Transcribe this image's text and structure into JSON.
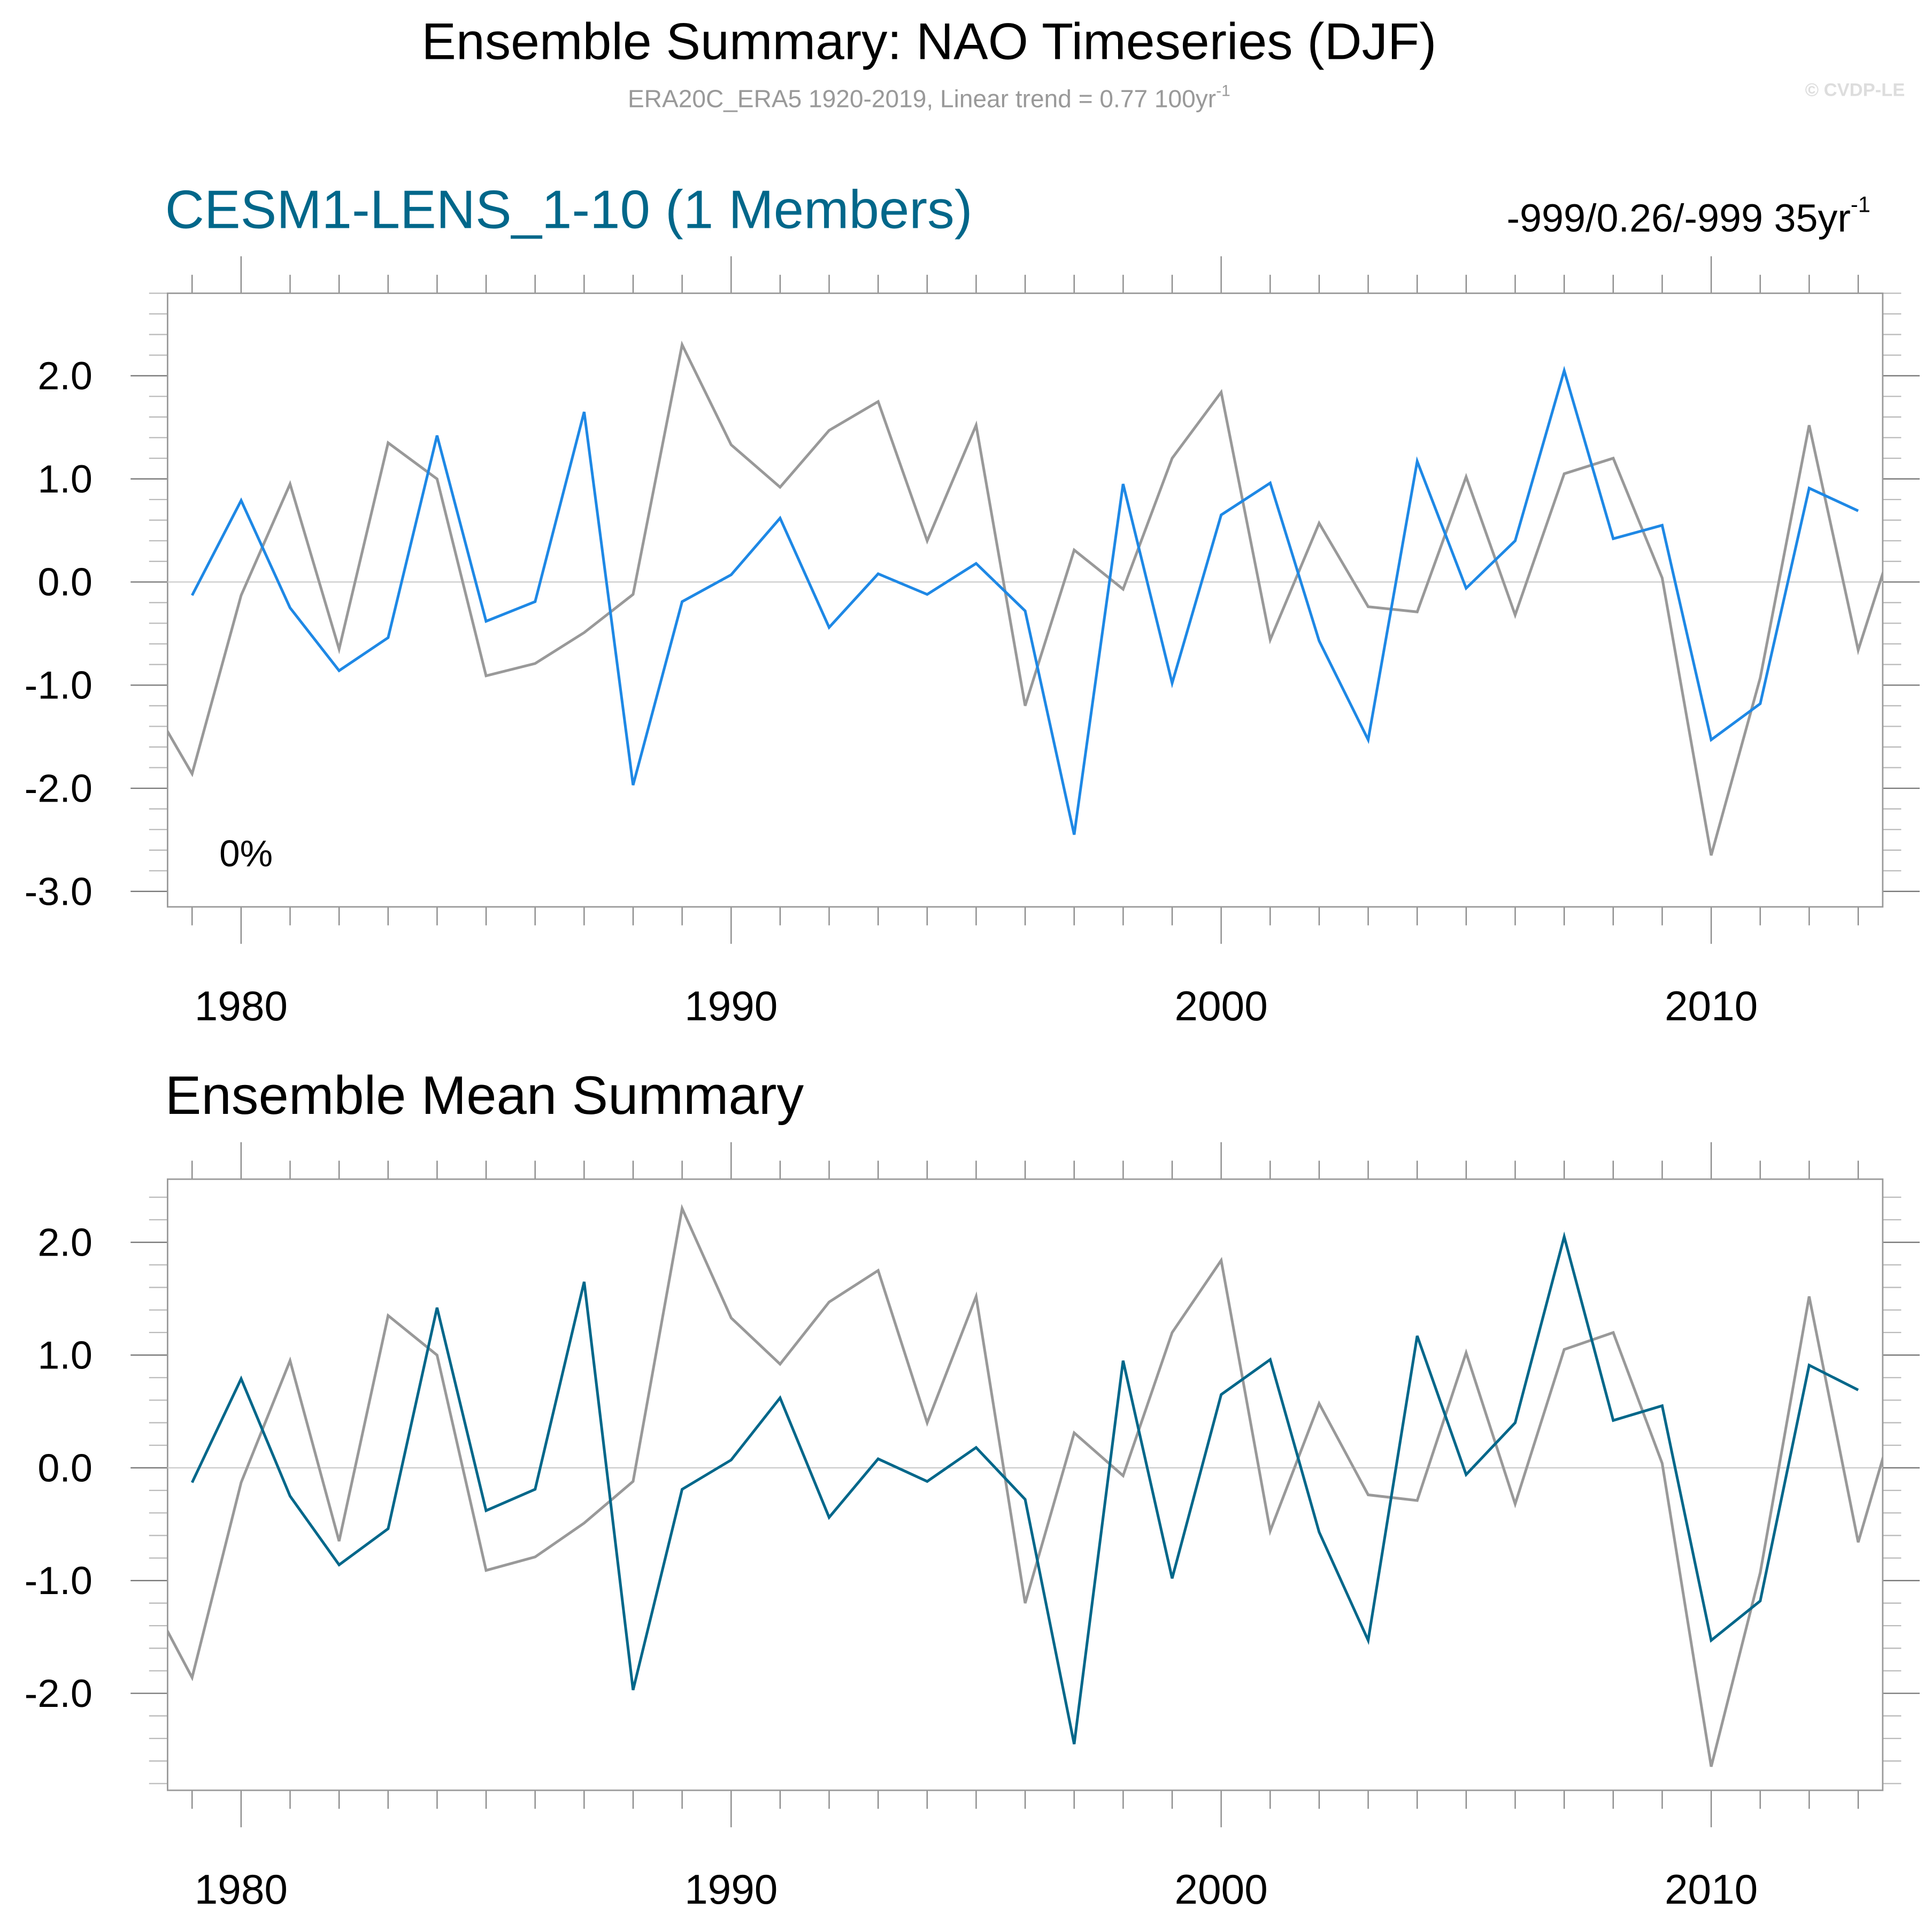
{
  "title": "Ensemble Summary: NAO Timeseries (DJF)",
  "subtitle": {
    "text": "ERA20C_ERA5 1920-2019, Linear trend = 0.77 100yr",
    "sup": "-1"
  },
  "watermark": "© CVDP-LE",
  "colors": {
    "observed": "#999999",
    "member": "#1e88e5",
    "ensemble_mean": "#00678a",
    "title_accent": "#00678a"
  },
  "chart_data": [
    {
      "type": "line",
      "title": "CESM1-LENS_1-10 (1 Members)",
      "right_label": {
        "text": "-999/0.26/-999 35yr",
        "sup": "-1"
      },
      "annotation": "0%",
      "xlim": [
        1978.5,
        2013.5
      ],
      "ylim": [
        -3.15,
        2.8
      ],
      "xticks": [
        1980,
        1990,
        2000,
        2010
      ],
      "xtick_labels": [
        "1980",
        "1990",
        "2000",
        "2010"
      ],
      "yticks": [
        2.0,
        1.0,
        0.0,
        -1.0,
        -2.0,
        -3.0
      ],
      "ytick_labels": [
        "2.0",
        "1.0",
        "0.0",
        "-1.0",
        "-2.0",
        "-3.0"
      ],
      "zero_line": true,
      "series": [
        {
          "key": "observed",
          "x_start": 1978,
          "values": [
            -1.04,
            -1.86,
            -0.13,
            0.95,
            -0.65,
            1.35,
            1.0,
            -0.91,
            -0.79,
            -0.49,
            -0.12,
            2.3,
            1.33,
            0.92,
            1.47,
            1.75,
            0.4,
            1.52,
            -1.2,
            0.31,
            -0.07,
            1.2,
            1.84,
            -0.56,
            0.57,
            -0.24,
            -0.29,
            1.02,
            -0.32,
            1.05,
            1.2,
            0.04,
            -2.65,
            -0.93,
            1.52,
            -0.66,
            0.82
          ]
        },
        {
          "key": "member",
          "x_start": 1979,
          "values": [
            -0.13,
            0.79,
            -0.25,
            -0.86,
            -0.54,
            1.42,
            -0.38,
            -0.19,
            1.65,
            -1.97,
            -0.19,
            0.07,
            0.62,
            -0.44,
            0.08,
            -0.12,
            0.18,
            -0.28,
            -2.45,
            0.95,
            -0.98,
            0.65,
            0.96,
            -0.57,
            -1.53,
            1.17,
            -0.06,
            0.4,
            2.05,
            0.42,
            0.55,
            -1.53,
            -1.18,
            0.91,
            0.69
          ]
        }
      ]
    },
    {
      "type": "line",
      "title": "Ensemble Mean Summary",
      "xlim": [
        1978.5,
        2013.5
      ],
      "ylim": [
        -2.86,
        2.56
      ],
      "xticks": [
        1980,
        1990,
        2000,
        2010
      ],
      "xtick_labels": [
        "1980",
        "1990",
        "2000",
        "2010"
      ],
      "yticks": [
        2.0,
        1.0,
        0.0,
        -1.0,
        -2.0
      ],
      "ytick_labels": [
        "2.0",
        "1.0",
        "0.0",
        "-1.0",
        "-2.0"
      ],
      "zero_line": true,
      "series": [
        {
          "key": "observed",
          "x_start": 1978,
          "values": [
            -1.04,
            -1.86,
            -0.13,
            0.95,
            -0.65,
            1.35,
            1.0,
            -0.91,
            -0.79,
            -0.49,
            -0.12,
            2.3,
            1.33,
            0.92,
            1.47,
            1.75,
            0.4,
            1.52,
            -1.2,
            0.31,
            -0.07,
            1.2,
            1.84,
            -0.56,
            0.57,
            -0.24,
            -0.29,
            1.02,
            -0.32,
            1.05,
            1.2,
            0.04,
            -2.65,
            -0.93,
            1.52,
            -0.66,
            0.82
          ]
        },
        {
          "key": "ensemble_mean",
          "x_start": 1979,
          "values": [
            -0.13,
            0.79,
            -0.25,
            -0.86,
            -0.54,
            1.42,
            -0.38,
            -0.19,
            1.65,
            -1.97,
            -0.19,
            0.07,
            0.62,
            -0.44,
            0.08,
            -0.12,
            0.18,
            -0.28,
            -2.45,
            0.95,
            -0.98,
            0.65,
            0.96,
            -0.57,
            -1.53,
            1.17,
            -0.06,
            0.4,
            2.05,
            0.42,
            0.55,
            -1.53,
            -1.18,
            0.91,
            0.69
          ]
        }
      ]
    }
  ]
}
